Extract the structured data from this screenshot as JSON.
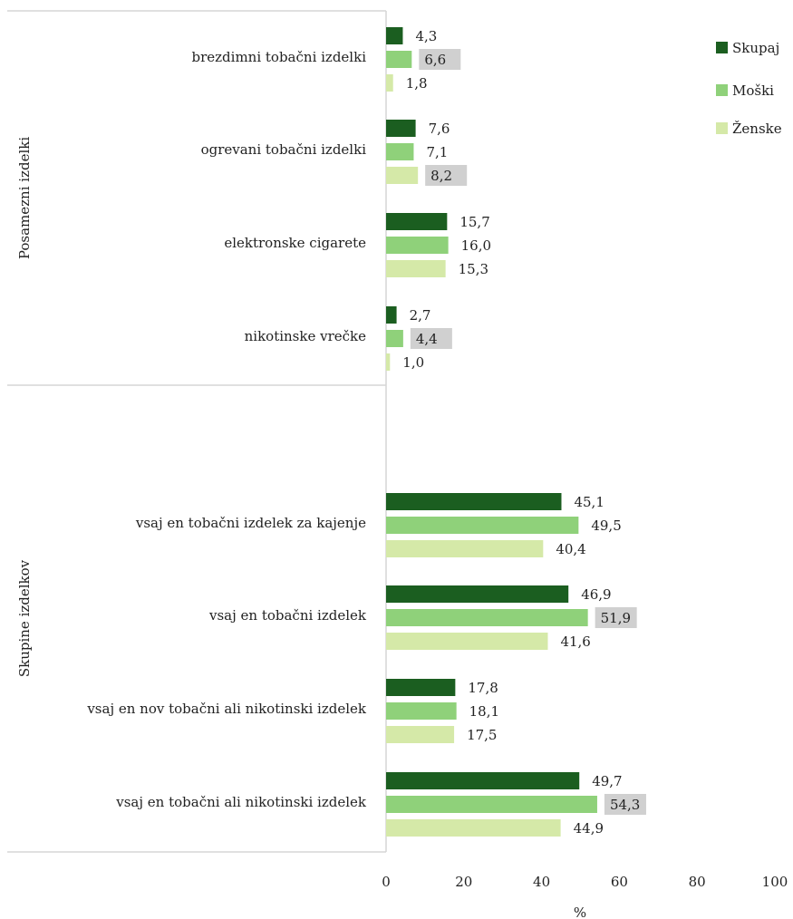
{
  "chart_data": {
    "type": "bar",
    "orientation": "horizontal",
    "xlabel": "%",
    "xlim": [
      0,
      100
    ],
    "xticks": [
      "0",
      "20",
      "40",
      "60",
      "80",
      "100"
    ],
    "grid": false,
    "legend_position": "top-right",
    "groups": [
      {
        "label": "Posamezni izdelki",
        "categories": [
          "brezdimni tobačni izdelki",
          "ogrevani tobačni izdelki",
          "elektronske cigarete",
          "nikotinske vrečke"
        ]
      },
      {
        "label": "Skupine izdelkov",
        "categories": [
          "vsaj en tobačni izdelek za kajenje",
          "vsaj en tobačni izdelek",
          "vsaj en nov tobačni ali nikotinski izdelek",
          "vsaj en tobačni ali nikotinski izdelek"
        ]
      }
    ],
    "series": [
      {
        "name": "Skupaj",
        "color": "#1b5e20",
        "values": [
          4.3,
          7.6,
          15.7,
          2.7,
          45.1,
          46.9,
          17.8,
          49.7
        ],
        "labels": [
          "4,3",
          "7,6",
          "15,7",
          "2,7",
          "45,1",
          "46,9",
          "17,8",
          "49,7"
        ]
      },
      {
        "name": "Moški",
        "color": "#8fd17a",
        "values": [
          6.6,
          7.1,
          16.0,
          4.4,
          49.5,
          51.9,
          18.1,
          54.3
        ],
        "labels": [
          "6,6",
          "7,1",
          "16,0",
          "4,4",
          "49,5",
          "51,9",
          "18,1",
          "54,3"
        ]
      },
      {
        "name": "Ženske",
        "color": "#d5e9a8",
        "values": [
          1.8,
          8.2,
          15.3,
          1.0,
          40.4,
          41.6,
          17.5,
          44.9
        ],
        "labels": [
          "1,8",
          "8,2",
          "15,3",
          "1,0",
          "40,4",
          "41,6",
          "17,5",
          "44,9"
        ]
      }
    ],
    "highlighted_labels": [
      {
        "series": 1,
        "index": 0
      },
      {
        "series": 2,
        "index": 1
      },
      {
        "series": 1,
        "index": 3
      },
      {
        "series": 1,
        "index": 5
      },
      {
        "series": 1,
        "index": 7
      }
    ],
    "highlight_color": "#d0d0d0"
  }
}
